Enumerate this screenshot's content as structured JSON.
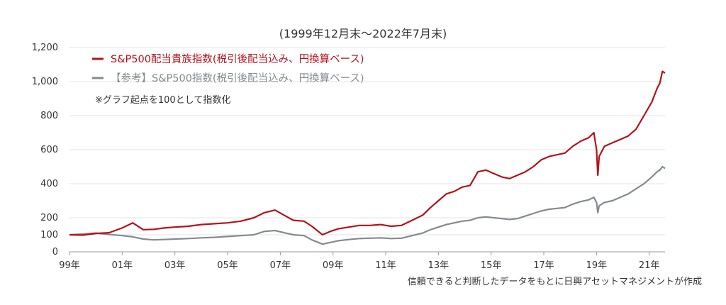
{
  "chart_data": {
    "type": "line",
    "subtitle": "(1999年12月末～2022年7月末)",
    "ylim": [
      0,
      1200
    ],
    "yticks": [
      0,
      100,
      200,
      400,
      600,
      800,
      1000,
      1200
    ],
    "ytick_labels": [
      "0",
      "100",
      "200",
      "400",
      "600",
      "800",
      "1,000",
      "1,200"
    ],
    "xlim": [
      1999.0,
      2021.6
    ],
    "xticks": [
      1999,
      2001,
      2003,
      2005,
      2007,
      2009,
      2011,
      2013,
      2015,
      2017,
      2019,
      2021
    ],
    "xtick_labels": [
      "99年",
      "01年",
      "03年",
      "05年",
      "07年",
      "09年",
      "11年",
      "13年",
      "15年",
      "17年",
      "19年",
      "21年"
    ],
    "grid": "horizontal",
    "legend_position": "top-left",
    "note": "※グラフ起点を100として指数化",
    "source": "信頼できると判断したデータをもとに日興アセットマネジメントが作成",
    "series": [
      {
        "name": "S&P500配当貴族指数(税引後配当込み、円換算ベース)",
        "color": "#b5121b",
        "x": [
          1999.0,
          1999.5,
          2000.0,
          2000.5,
          2001.0,
          2001.4,
          2001.8,
          2002.2,
          2002.6,
          2003.0,
          2003.5,
          2004.0,
          2004.5,
          2005.0,
          2005.5,
          2006.0,
          2006.4,
          2006.8,
          2007.2,
          2007.5,
          2007.9,
          2008.2,
          2008.6,
          2008.9,
          2009.2,
          2009.6,
          2010.0,
          2010.4,
          2010.8,
          2011.2,
          2011.6,
          2012.0,
          2012.4,
          2012.7,
          2013.0,
          2013.3,
          2013.6,
          2013.9,
          2014.2,
          2014.5,
          2014.8,
          2015.1,
          2015.4,
          2015.7,
          2016.0,
          2016.3,
          2016.6,
          2016.9,
          2017.2,
          2017.5,
          2017.8,
          2018.1,
          2018.4,
          2018.7,
          2018.9,
          2019.0,
          2019.05,
          2019.1,
          2019.3,
          2019.6,
          2019.9,
          2020.2,
          2020.5,
          2020.8,
          2021.1,
          2021.3,
          2021.4,
          2021.5,
          2021.6
        ],
        "values": [
          100,
          98,
          108,
          112,
          140,
          170,
          130,
          132,
          140,
          145,
          150,
          160,
          165,
          170,
          180,
          200,
          230,
          245,
          210,
          185,
          180,
          150,
          100,
          120,
          135,
          145,
          155,
          155,
          160,
          150,
          155,
          185,
          215,
          260,
          300,
          340,
          355,
          380,
          390,
          470,
          480,
          460,
          440,
          430,
          450,
          470,
          500,
          540,
          560,
          570,
          580,
          620,
          650,
          670,
          700,
          600,
          450,
          560,
          620,
          640,
          660,
          680,
          720,
          800,
          880,
          960,
          990,
          1060,
          1050
        ]
      },
      {
        "name": "【参考】S&P500指数(税引後配当込み、円換算ベース)",
        "color": "#838b91",
        "x": [
          1999.0,
          1999.5,
          2000.0,
          2000.5,
          2001.0,
          2001.4,
          2001.8,
          2002.2,
          2002.6,
          2003.0,
          2003.5,
          2004.0,
          2004.5,
          2005.0,
          2005.5,
          2006.0,
          2006.4,
          2006.8,
          2007.2,
          2007.5,
          2007.9,
          2008.2,
          2008.6,
          2008.9,
          2009.2,
          2009.6,
          2010.0,
          2010.4,
          2010.8,
          2011.2,
          2011.6,
          2012.0,
          2012.4,
          2012.7,
          2013.0,
          2013.3,
          2013.6,
          2013.9,
          2014.2,
          2014.5,
          2014.8,
          2015.1,
          2015.4,
          2015.7,
          2016.0,
          2016.3,
          2016.6,
          2016.9,
          2017.2,
          2017.5,
          2017.8,
          2018.1,
          2018.4,
          2018.7,
          2018.9,
          2019.0,
          2019.05,
          2019.1,
          2019.3,
          2019.6,
          2019.9,
          2020.2,
          2020.5,
          2020.8,
          2021.1,
          2021.3,
          2021.4,
          2021.5,
          2021.6
        ],
        "values": [
          100,
          105,
          110,
          102,
          95,
          88,
          75,
          70,
          72,
          75,
          78,
          82,
          85,
          90,
          95,
          100,
          120,
          125,
          110,
          100,
          95,
          70,
          45,
          55,
          65,
          72,
          78,
          80,
          82,
          78,
          80,
          95,
          110,
          130,
          145,
          160,
          170,
          180,
          185,
          200,
          205,
          200,
          195,
          190,
          195,
          210,
          225,
          240,
          250,
          255,
          260,
          280,
          295,
          305,
          320,
          290,
          230,
          270,
          290,
          300,
          320,
          340,
          370,
          400,
          440,
          470,
          480,
          500,
          490
        ]
      }
    ]
  }
}
